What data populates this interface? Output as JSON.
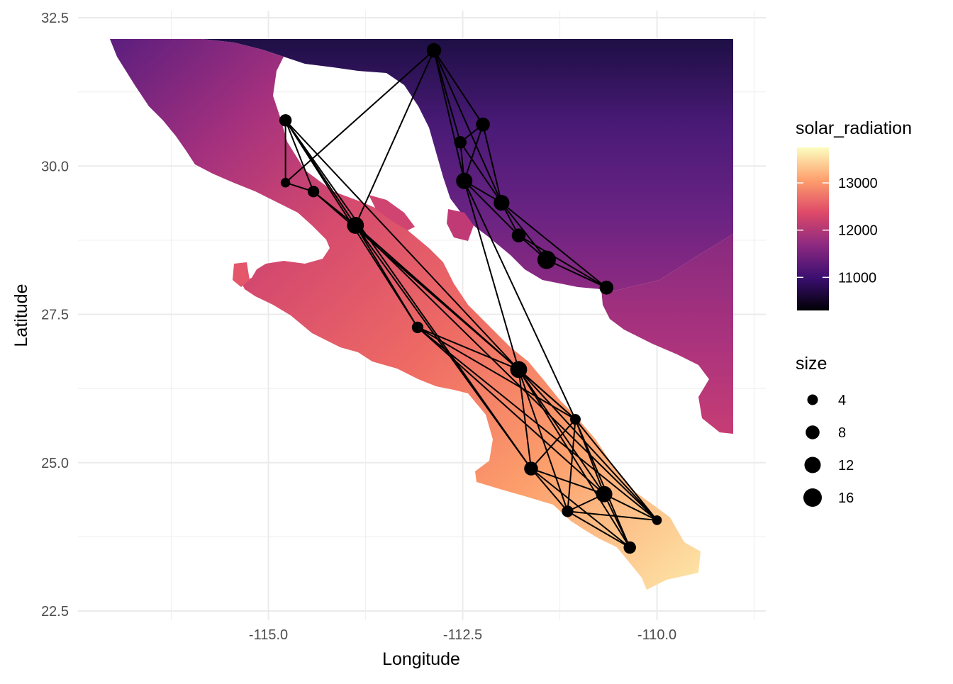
{
  "chart_data": {
    "type": "scatter",
    "title": "",
    "xlabel": "Longitude",
    "ylabel": "Latitude",
    "xlim": [
      -117.45,
      -108.6
    ],
    "ylim": [
      22.5,
      32.5
    ],
    "x_ticks": [
      -115.0,
      -112.5,
      -110.0
    ],
    "x_tick_labels": [
      "-115.0",
      "-112.5",
      "-110.0"
    ],
    "y_ticks": [
      22.5,
      25.0,
      27.5,
      30.0,
      32.5
    ],
    "y_tick_labels": [
      "22.5",
      "25.0",
      "27.5",
      "30.0",
      "32.5"
    ],
    "grid": true,
    "legend_position": "right",
    "fill_legend": {
      "title": "solar_radiation",
      "range": [
        10300,
        13750
      ],
      "breaks": [
        11000,
        12000,
        13000
      ],
      "break_labels": [
        "11000",
        "12000",
        "13000"
      ],
      "palette": "magma",
      "colors": [
        "#000004",
        "#3b0f70",
        "#8c2981",
        "#de4968",
        "#fe9f6d",
        "#fcfdbf"
      ]
    },
    "size_legend": {
      "title": "size",
      "breaks": [
        4,
        8,
        12,
        16
      ],
      "break_labels": [
        "4",
        "8",
        "12",
        "16"
      ]
    },
    "nodes": [
      {
        "id": 0,
        "x": -112.87,
        "y": 31.95,
        "size": 9
      },
      {
        "id": 1,
        "x": -114.78,
        "y": 30.77,
        "size": 6
      },
      {
        "id": 2,
        "x": -112.53,
        "y": 30.4,
        "size": 6
      },
      {
        "id": 3,
        "x": -112.24,
        "y": 30.7,
        "size": 8
      },
      {
        "id": 4,
        "x": -114.78,
        "y": 29.72,
        "size": 3
      },
      {
        "id": 5,
        "x": -114.42,
        "y": 29.57,
        "size": 5
      },
      {
        "id": 6,
        "x": -112.48,
        "y": 29.75,
        "size": 12
      },
      {
        "id": 7,
        "x": -112.0,
        "y": 29.38,
        "size": 11
      },
      {
        "id": 8,
        "x": -113.88,
        "y": 29.0,
        "size": 13
      },
      {
        "id": 9,
        "x": -111.78,
        "y": 28.83,
        "size": 8
      },
      {
        "id": 10,
        "x": -111.42,
        "y": 28.42,
        "size": 16
      },
      {
        "id": 11,
        "x": -110.65,
        "y": 27.95,
        "size": 8
      },
      {
        "id": 12,
        "x": -113.08,
        "y": 27.28,
        "size": 5
      },
      {
        "id": 13,
        "x": -111.78,
        "y": 26.57,
        "size": 13
      },
      {
        "id": 14,
        "x": -111.05,
        "y": 25.73,
        "size": 4
      },
      {
        "id": 15,
        "x": -111.62,
        "y": 24.9,
        "size": 8
      },
      {
        "id": 16,
        "x": -110.68,
        "y": 24.47,
        "size": 12
      },
      {
        "id": 17,
        "x": -111.15,
        "y": 24.18,
        "size": 5
      },
      {
        "id": 18,
        "x": -110.0,
        "y": 24.03,
        "size": 3
      },
      {
        "id": 19,
        "x": -110.35,
        "y": 23.57,
        "size": 6
      }
    ],
    "edges": [
      [
        0,
        4
      ],
      [
        0,
        8
      ],
      [
        0,
        2
      ],
      [
        0,
        6
      ],
      [
        0,
        7
      ],
      [
        0,
        3
      ],
      [
        1,
        4
      ],
      [
        1,
        5
      ],
      [
        1,
        8
      ],
      [
        1,
        12
      ],
      [
        1,
        13
      ],
      [
        1,
        15
      ],
      [
        2,
        3
      ],
      [
        2,
        6
      ],
      [
        2,
        7
      ],
      [
        3,
        7
      ],
      [
        3,
        6
      ],
      [
        4,
        5
      ],
      [
        5,
        8
      ],
      [
        5,
        13
      ],
      [
        6,
        7
      ],
      [
        6,
        9
      ],
      [
        6,
        13
      ],
      [
        6,
        14
      ],
      [
        7,
        9
      ],
      [
        7,
        10
      ],
      [
        7,
        11
      ],
      [
        9,
        10
      ],
      [
        10,
        11
      ],
      [
        9,
        11
      ],
      [
        8,
        12
      ],
      [
        8,
        13
      ],
      [
        8,
        15
      ],
      [
        8,
        14
      ],
      [
        8,
        18
      ],
      [
        12,
        13
      ],
      [
        12,
        14
      ],
      [
        12,
        16
      ],
      [
        12,
        18
      ],
      [
        13,
        14
      ],
      [
        13,
        15
      ],
      [
        13,
        16
      ],
      [
        13,
        17
      ],
      [
        13,
        18
      ],
      [
        13,
        19
      ],
      [
        14,
        15
      ],
      [
        14,
        17
      ],
      [
        14,
        18
      ],
      [
        14,
        19
      ],
      [
        14,
        16
      ],
      [
        15,
        16
      ],
      [
        15,
        17
      ],
      [
        15,
        19
      ],
      [
        16,
        18
      ],
      [
        16,
        19
      ],
      [
        16,
        17
      ],
      [
        17,
        19
      ],
      [
        17,
        18
      ]
    ]
  }
}
